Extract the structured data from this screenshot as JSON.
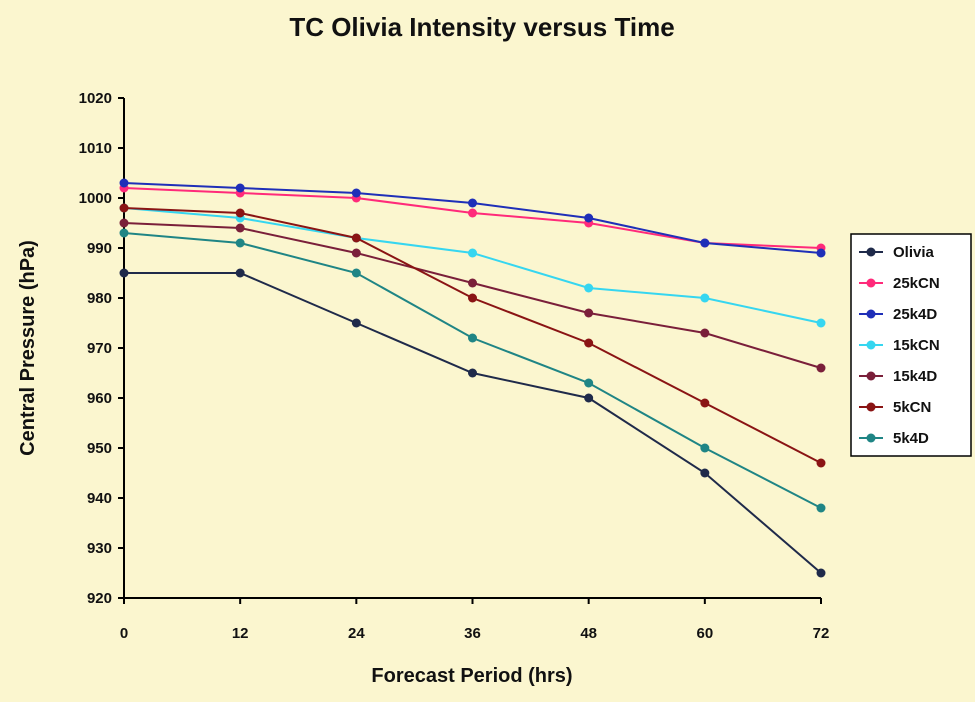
{
  "chart_data": {
    "type": "line",
    "title": "TC Olivia Intensity versus Time",
    "xlabel": "Forecast Period (hrs)",
    "ylabel": "Central Pressure (hPa)",
    "x": [
      0,
      12,
      24,
      36,
      48,
      60,
      72
    ],
    "xlim": [
      0,
      72
    ],
    "ylim": [
      920,
      1020
    ],
    "yticks": [
      920,
      930,
      940,
      950,
      960,
      970,
      980,
      990,
      1000,
      1010,
      1020
    ],
    "grid": false,
    "legend_position": "right",
    "series": [
      {
        "name": "Olivia",
        "color": "#1f2a4a",
        "values": [
          985,
          985,
          975,
          965,
          960,
          945,
          925
        ]
      },
      {
        "name": "25kCN",
        "color": "#ff2a7a",
        "values": [
          1002,
          1001,
          1000,
          997,
          995,
          991,
          990
        ]
      },
      {
        "name": "25k4D",
        "color": "#1f2fb8",
        "values": [
          1003,
          1002,
          1001,
          999,
          996,
          991,
          989
        ]
      },
      {
        "name": "15kCN",
        "color": "#36d6f0",
        "values": [
          998,
          996,
          992,
          989,
          982,
          980,
          975
        ]
      },
      {
        "name": "15k4D",
        "color": "#7a1f3a",
        "values": [
          995,
          994,
          989,
          983,
          977,
          973,
          966
        ]
      },
      {
        "name": "5kCN",
        "color": "#8a1414",
        "values": [
          998,
          997,
          992,
          980,
          971,
          959,
          947
        ]
      },
      {
        "name": "5k4D",
        "color": "#1f8585",
        "values": [
          993,
          991,
          985,
          972,
          963,
          950,
          938
        ]
      }
    ]
  }
}
